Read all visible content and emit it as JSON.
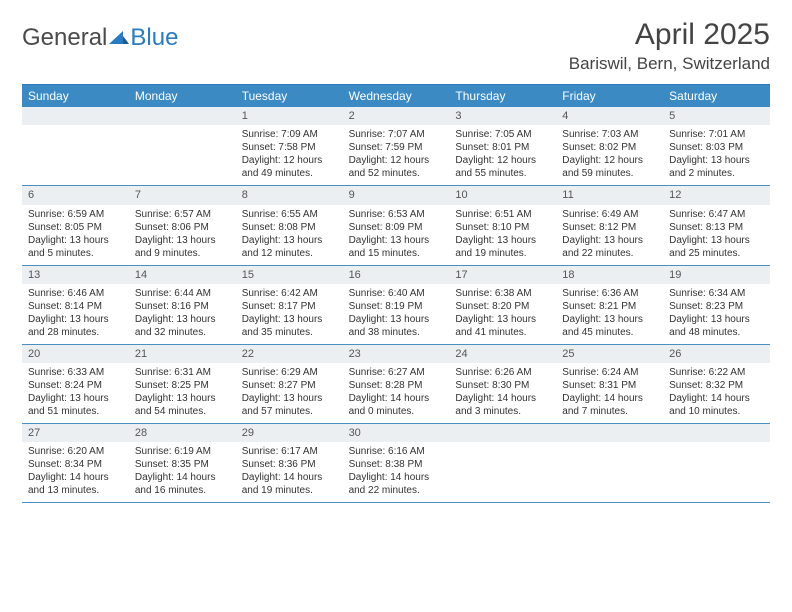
{
  "logo": {
    "text_a": "General",
    "text_b": "Blue"
  },
  "title": "April 2025",
  "location": "Bariswil, Bern, Switzerland",
  "weekdays": [
    "Sunday",
    "Monday",
    "Tuesday",
    "Wednesday",
    "Thursday",
    "Friday",
    "Saturday"
  ],
  "colors": {
    "header_bar": "#3b8ac4",
    "rule": "#4a8fc2",
    "daynum_bg": "#eceff1",
    "logo_blue": "#2a7bc0"
  },
  "weeks": [
    [
      null,
      null,
      {
        "n": "1",
        "sunrise": "Sunrise: 7:09 AM",
        "sunset": "Sunset: 7:58 PM",
        "day1": "Daylight: 12 hours",
        "day2": "and 49 minutes."
      },
      {
        "n": "2",
        "sunrise": "Sunrise: 7:07 AM",
        "sunset": "Sunset: 7:59 PM",
        "day1": "Daylight: 12 hours",
        "day2": "and 52 minutes."
      },
      {
        "n": "3",
        "sunrise": "Sunrise: 7:05 AM",
        "sunset": "Sunset: 8:01 PM",
        "day1": "Daylight: 12 hours",
        "day2": "and 55 minutes."
      },
      {
        "n": "4",
        "sunrise": "Sunrise: 7:03 AM",
        "sunset": "Sunset: 8:02 PM",
        "day1": "Daylight: 12 hours",
        "day2": "and 59 minutes."
      },
      {
        "n": "5",
        "sunrise": "Sunrise: 7:01 AM",
        "sunset": "Sunset: 8:03 PM",
        "day1": "Daylight: 13 hours",
        "day2": "and 2 minutes."
      }
    ],
    [
      {
        "n": "6",
        "sunrise": "Sunrise: 6:59 AM",
        "sunset": "Sunset: 8:05 PM",
        "day1": "Daylight: 13 hours",
        "day2": "and 5 minutes."
      },
      {
        "n": "7",
        "sunrise": "Sunrise: 6:57 AM",
        "sunset": "Sunset: 8:06 PM",
        "day1": "Daylight: 13 hours",
        "day2": "and 9 minutes."
      },
      {
        "n": "8",
        "sunrise": "Sunrise: 6:55 AM",
        "sunset": "Sunset: 8:08 PM",
        "day1": "Daylight: 13 hours",
        "day2": "and 12 minutes."
      },
      {
        "n": "9",
        "sunrise": "Sunrise: 6:53 AM",
        "sunset": "Sunset: 8:09 PM",
        "day1": "Daylight: 13 hours",
        "day2": "and 15 minutes."
      },
      {
        "n": "10",
        "sunrise": "Sunrise: 6:51 AM",
        "sunset": "Sunset: 8:10 PM",
        "day1": "Daylight: 13 hours",
        "day2": "and 19 minutes."
      },
      {
        "n": "11",
        "sunrise": "Sunrise: 6:49 AM",
        "sunset": "Sunset: 8:12 PM",
        "day1": "Daylight: 13 hours",
        "day2": "and 22 minutes."
      },
      {
        "n": "12",
        "sunrise": "Sunrise: 6:47 AM",
        "sunset": "Sunset: 8:13 PM",
        "day1": "Daylight: 13 hours",
        "day2": "and 25 minutes."
      }
    ],
    [
      {
        "n": "13",
        "sunrise": "Sunrise: 6:46 AM",
        "sunset": "Sunset: 8:14 PM",
        "day1": "Daylight: 13 hours",
        "day2": "and 28 minutes."
      },
      {
        "n": "14",
        "sunrise": "Sunrise: 6:44 AM",
        "sunset": "Sunset: 8:16 PM",
        "day1": "Daylight: 13 hours",
        "day2": "and 32 minutes."
      },
      {
        "n": "15",
        "sunrise": "Sunrise: 6:42 AM",
        "sunset": "Sunset: 8:17 PM",
        "day1": "Daylight: 13 hours",
        "day2": "and 35 minutes."
      },
      {
        "n": "16",
        "sunrise": "Sunrise: 6:40 AM",
        "sunset": "Sunset: 8:19 PM",
        "day1": "Daylight: 13 hours",
        "day2": "and 38 minutes."
      },
      {
        "n": "17",
        "sunrise": "Sunrise: 6:38 AM",
        "sunset": "Sunset: 8:20 PM",
        "day1": "Daylight: 13 hours",
        "day2": "and 41 minutes."
      },
      {
        "n": "18",
        "sunrise": "Sunrise: 6:36 AM",
        "sunset": "Sunset: 8:21 PM",
        "day1": "Daylight: 13 hours",
        "day2": "and 45 minutes."
      },
      {
        "n": "19",
        "sunrise": "Sunrise: 6:34 AM",
        "sunset": "Sunset: 8:23 PM",
        "day1": "Daylight: 13 hours",
        "day2": "and 48 minutes."
      }
    ],
    [
      {
        "n": "20",
        "sunrise": "Sunrise: 6:33 AM",
        "sunset": "Sunset: 8:24 PM",
        "day1": "Daylight: 13 hours",
        "day2": "and 51 minutes."
      },
      {
        "n": "21",
        "sunrise": "Sunrise: 6:31 AM",
        "sunset": "Sunset: 8:25 PM",
        "day1": "Daylight: 13 hours",
        "day2": "and 54 minutes."
      },
      {
        "n": "22",
        "sunrise": "Sunrise: 6:29 AM",
        "sunset": "Sunset: 8:27 PM",
        "day1": "Daylight: 13 hours",
        "day2": "and 57 minutes."
      },
      {
        "n": "23",
        "sunrise": "Sunrise: 6:27 AM",
        "sunset": "Sunset: 8:28 PM",
        "day1": "Daylight: 14 hours",
        "day2": "and 0 minutes."
      },
      {
        "n": "24",
        "sunrise": "Sunrise: 6:26 AM",
        "sunset": "Sunset: 8:30 PM",
        "day1": "Daylight: 14 hours",
        "day2": "and 3 minutes."
      },
      {
        "n": "25",
        "sunrise": "Sunrise: 6:24 AM",
        "sunset": "Sunset: 8:31 PM",
        "day1": "Daylight: 14 hours",
        "day2": "and 7 minutes."
      },
      {
        "n": "26",
        "sunrise": "Sunrise: 6:22 AM",
        "sunset": "Sunset: 8:32 PM",
        "day1": "Daylight: 14 hours",
        "day2": "and 10 minutes."
      }
    ],
    [
      {
        "n": "27",
        "sunrise": "Sunrise: 6:20 AM",
        "sunset": "Sunset: 8:34 PM",
        "day1": "Daylight: 14 hours",
        "day2": "and 13 minutes."
      },
      {
        "n": "28",
        "sunrise": "Sunrise: 6:19 AM",
        "sunset": "Sunset: 8:35 PM",
        "day1": "Daylight: 14 hours",
        "day2": "and 16 minutes."
      },
      {
        "n": "29",
        "sunrise": "Sunrise: 6:17 AM",
        "sunset": "Sunset: 8:36 PM",
        "day1": "Daylight: 14 hours",
        "day2": "and 19 minutes."
      },
      {
        "n": "30",
        "sunrise": "Sunrise: 6:16 AM",
        "sunset": "Sunset: 8:38 PM",
        "day1": "Daylight: 14 hours",
        "day2": "and 22 minutes."
      },
      null,
      null,
      null
    ]
  ]
}
